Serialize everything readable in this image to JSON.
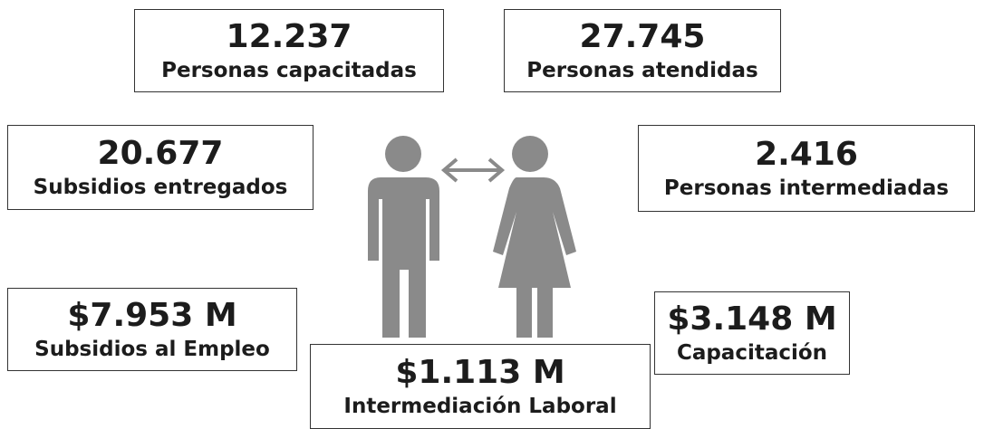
{
  "boxes": [
    {
      "value": "12.237",
      "label": "Personas capacitadas"
    },
    {
      "value": "27.745",
      "label": "Personas atendidas"
    },
    {
      "value": "20.677",
      "label": "Subsidios entregados"
    },
    {
      "value": "2.416",
      "label": "Personas intermediadas"
    },
    {
      "value": "$7.953 M",
      "label": "Subsidios al Empleo"
    },
    {
      "value": "$1.113 M",
      "label": "Intermediación Laboral"
    },
    {
      "value": "$3.148 M",
      "label": "Capacitación"
    }
  ]
}
